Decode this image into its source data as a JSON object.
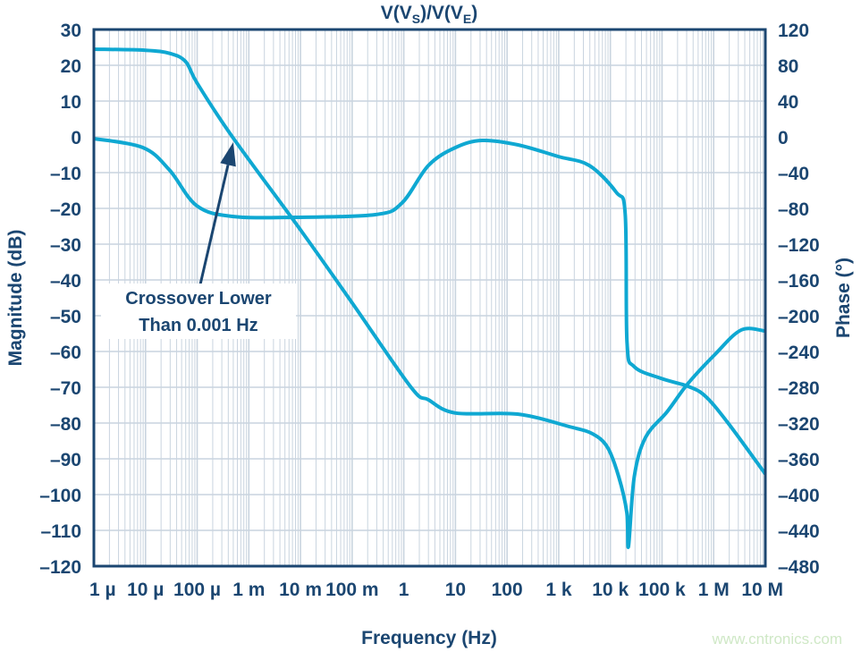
{
  "chart_data": {
    "type": "line",
    "title": {
      "parts": [
        "V(V",
        "S",
        ")/V(V",
        "E",
        ")"
      ]
    },
    "xlabel": "Frequency (Hz)",
    "ylabel_left": "Magnitude (dB)",
    "ylabel_right": "Phase (°)",
    "x_scale": "log",
    "xlim": [
      1e-06,
      10000000.0
    ],
    "x_ticks": [
      {
        "value": 1e-06,
        "label": "1 µ"
      },
      {
        "value": 1e-05,
        "label": "10 µ"
      },
      {
        "value": 0.0001,
        "label": "100 µ"
      },
      {
        "value": 0.001,
        "label": "1 m"
      },
      {
        "value": 0.01,
        "label": "10 m"
      },
      {
        "value": 0.1,
        "label": "100 m"
      },
      {
        "value": 1,
        "label": "1"
      },
      {
        "value": 10,
        "label": "10"
      },
      {
        "value": 100,
        "label": "100"
      },
      {
        "value": 1000.0,
        "label": "1 k"
      },
      {
        "value": 10000.0,
        "label": "10 k"
      },
      {
        "value": 100000.0,
        "label": "100 k"
      },
      {
        "value": 1000000.0,
        "label": "1 M"
      },
      {
        "value": 10000000.0,
        "label": "10 M"
      }
    ],
    "ylim_left": [
      -120,
      30
    ],
    "y_ticks_left": [
      "30",
      "20",
      "10",
      "0",
      "–10",
      "–20",
      "–30",
      "–40",
      "–50",
      "–60",
      "–70",
      "–80",
      "–90",
      "–100",
      "–110",
      "–120"
    ],
    "ylim_right": [
      -480,
      120
    ],
    "y_ticks_right": [
      "120",
      "80",
      "40",
      "0",
      "–40",
      "–80",
      "–120",
      "–160",
      "–200",
      "–240",
      "–280",
      "–320",
      "–360",
      "–400",
      "–440",
      "–480"
    ],
    "grid": true,
    "legend": "none",
    "series": [
      {
        "axis": "left",
        "color": "#0fa8d2",
        "x": [
          1e-06,
          1e-05,
          3e-05,
          6e-05,
          0.0001,
          0.00048,
          0.01,
          0.1,
          1.38,
          3,
          10,
          160,
          1600,
          4500,
          8800,
          14500,
          20800,
          22400,
          29000,
          48000,
          126000,
          316000,
          1030000,
          3400000,
          10000000.0
        ],
        "y": [
          24.5,
          24.2,
          23.3,
          21,
          15,
          0,
          -26,
          -46.4,
          -70,
          -73.5,
          -77.2,
          -77.5,
          -81,
          -83,
          -86.8,
          -95,
          -105,
          -114.5,
          -95,
          -84,
          -76.8,
          -69,
          -61,
          -54,
          -54.3
        ]
      },
      {
        "axis": "right",
        "color": "#0fa8d2",
        "x": [
          1e-06,
          8.9e-06,
          2.9e-05,
          9.8e-05,
          0.00048,
          0.0078,
          0.28,
          0.92,
          3,
          10,
          33,
          163,
          980,
          3900,
          13000,
          19400,
          21000,
          29000,
          95000,
          320000,
          690000,
          1900000,
          10000000.0
        ],
        "y": [
          -2,
          -12,
          -37,
          -77,
          -89,
          -90,
          -87,
          -74,
          -32,
          -12,
          -4,
          -9,
          -22,
          -32,
          -62,
          -87,
          -230,
          -257,
          -270,
          -279,
          -290,
          -320,
          -377
        ]
      }
    ],
    "annotations": [
      {
        "lines": [
          "Crossover Lower",
          "Than 0.001 Hz"
        ],
        "arrow_to_x": 0.0005,
        "arrow_to_y": 0
      }
    ]
  },
  "watermark": "www.cntronics.com",
  "colors": {
    "axis": "#1b4671",
    "grid": "#c9d4df",
    "curve": "#0fa8d2"
  }
}
